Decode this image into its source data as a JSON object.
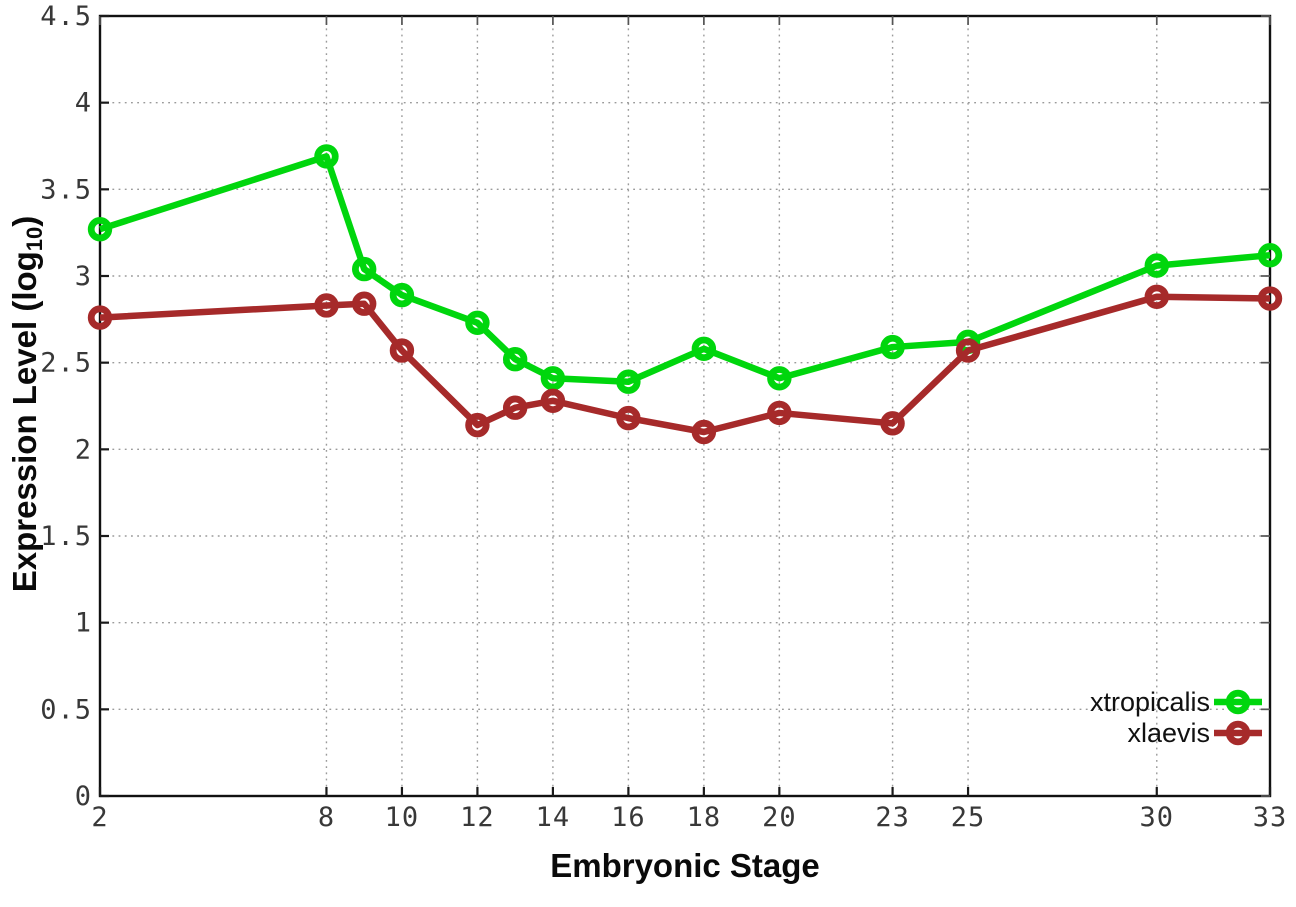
{
  "figure": {
    "background": "#ffffff",
    "x_axis_title": "Embryonic Stage",
    "y_axis_title_prefix": "Expression Level (log",
    "y_axis_title_sub": "10",
    "y_axis_title_suffix": ")"
  },
  "chart_data": {
    "type": "line",
    "title": "",
    "xlabel": "Embryonic Stage",
    "ylabel": "Expression Level (log10)",
    "x": [
      2,
      8,
      9,
      10,
      12,
      13,
      14,
      16,
      18,
      20,
      23,
      25,
      30,
      33
    ],
    "series": [
      {
        "name": "xtropicalis",
        "color": "#00d60d",
        "marker": "open-circle",
        "values": [
          3.27,
          3.69,
          3.04,
          2.89,
          2.73,
          2.52,
          2.41,
          2.39,
          2.58,
          2.41,
          2.59,
          2.62,
          3.06,
          3.12
        ]
      },
      {
        "name": "xlaevis",
        "color": "#a62a2a",
        "marker": "open-circle",
        "values": [
          2.76,
          2.83,
          2.84,
          2.57,
          2.14,
          2.24,
          2.28,
          2.18,
          2.1,
          2.21,
          2.15,
          2.57,
          2.88,
          2.87
        ]
      }
    ],
    "xlim": [
      2,
      33
    ],
    "ylim": [
      0,
      4.5
    ],
    "x_ticks": [
      2,
      8,
      10,
      12,
      14,
      16,
      18,
      20,
      23,
      25,
      30,
      33
    ],
    "x_tick_labels": [
      "2",
      "8",
      "10",
      "12",
      "14",
      "16",
      "18",
      "20",
      "23",
      "25",
      "30",
      "33"
    ],
    "y_ticks": [
      0,
      0.5,
      1,
      1.5,
      2,
      2.5,
      3,
      3.5,
      4,
      4.5
    ],
    "y_tick_labels": [
      "0",
      "0.5",
      "1",
      "1.5",
      "2",
      "2.5",
      "3",
      "3.5",
      "4",
      "4.5"
    ],
    "grid": true,
    "border_box": true,
    "legend_position": "inside-bottom-right"
  }
}
